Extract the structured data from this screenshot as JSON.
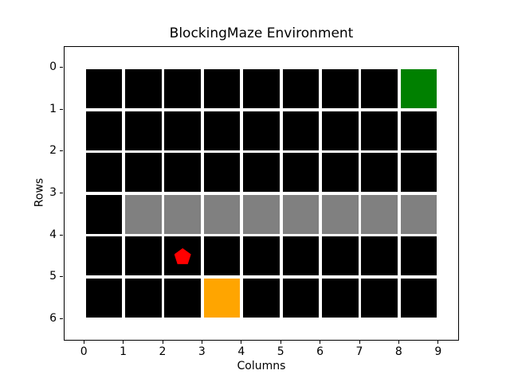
{
  "chart_data": {
    "type": "heatmap",
    "title": "BlockingMaze Environment",
    "xlabel": "Columns",
    "ylabel": "Rows",
    "x_ticks": [
      0,
      1,
      2,
      3,
      4,
      5,
      6,
      7,
      8,
      9
    ],
    "y_ticks": [
      0,
      1,
      2,
      3,
      4,
      5,
      6
    ],
    "xlim": [
      -0.5,
      9.5
    ],
    "ylim": [
      6.5,
      -0.5
    ],
    "grid": {
      "rows": 6,
      "cols": 9,
      "cells": [
        [
          "black",
          "black",
          "black",
          "black",
          "black",
          "black",
          "black",
          "black",
          "green"
        ],
        [
          "black",
          "black",
          "black",
          "black",
          "black",
          "black",
          "black",
          "black",
          "black"
        ],
        [
          "black",
          "black",
          "black",
          "black",
          "black",
          "black",
          "black",
          "black",
          "black"
        ],
        [
          "black",
          "gray",
          "gray",
          "gray",
          "gray",
          "gray",
          "gray",
          "gray",
          "gray"
        ],
        [
          "black",
          "black",
          "black",
          "black",
          "black",
          "black",
          "black",
          "black",
          "black"
        ],
        [
          "black",
          "black",
          "black",
          "orange",
          "black",
          "black",
          "black",
          "black",
          "black"
        ]
      ]
    },
    "colors": {
      "black": "#000000",
      "gray": "#808080",
      "green": "#008000",
      "orange": "#ffa500",
      "red": "#ff0000",
      "background": "#ffffff",
      "text": "#000000"
    },
    "agent": {
      "marker": "pentagon",
      "color": "red",
      "col": 2.5,
      "row": 4.5
    },
    "legend": "none",
    "grid_lines": "white gaps between cells"
  }
}
